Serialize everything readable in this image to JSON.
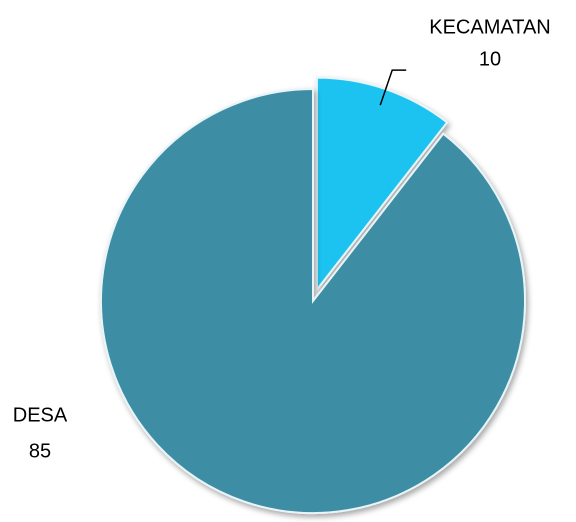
{
  "chart_data": {
    "type": "pie",
    "categories": [
      "KECAMATAN",
      "DESA"
    ],
    "values": [
      10,
      85
    ],
    "colors": [
      "#1ec3f0",
      "#3d8ea5"
    ],
    "explode": [
      true,
      false
    ]
  }
}
